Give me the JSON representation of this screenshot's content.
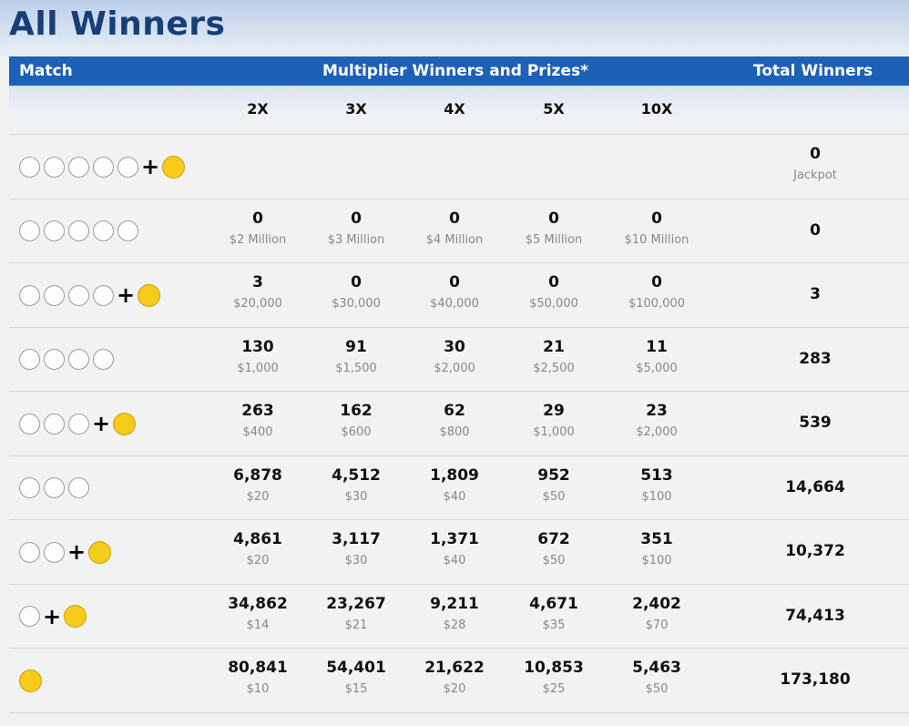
{
  "page": {
    "title": "All Winners"
  },
  "header": {
    "match": "Match",
    "multiplier": "Multiplier Winners and Prizes*",
    "total": "Total Winners"
  },
  "multipliers": [
    "2X",
    "3X",
    "4X",
    "5X",
    "10X"
  ],
  "rows": [
    {
      "white_balls": 5,
      "powerball": true,
      "cells": [],
      "total": "0",
      "total_label": "Jackpot"
    },
    {
      "white_balls": 5,
      "powerball": false,
      "cells": [
        {
          "count": "0",
          "prize": "$2 Million"
        },
        {
          "count": "0",
          "prize": "$3 Million"
        },
        {
          "count": "0",
          "prize": "$4 Million"
        },
        {
          "count": "0",
          "prize": "$5 Million"
        },
        {
          "count": "0",
          "prize": "$10 Million"
        }
      ],
      "total": "0",
      "total_label": ""
    },
    {
      "white_balls": 4,
      "powerball": true,
      "cells": [
        {
          "count": "3",
          "prize": "$20,000"
        },
        {
          "count": "0",
          "prize": "$30,000"
        },
        {
          "count": "0",
          "prize": "$40,000"
        },
        {
          "count": "0",
          "prize": "$50,000"
        },
        {
          "count": "0",
          "prize": "$100,000"
        }
      ],
      "total": "3",
      "total_label": ""
    },
    {
      "white_balls": 4,
      "powerball": false,
      "cells": [
        {
          "count": "130",
          "prize": "$1,000"
        },
        {
          "count": "91",
          "prize": "$1,500"
        },
        {
          "count": "30",
          "prize": "$2,000"
        },
        {
          "count": "21",
          "prize": "$2,500"
        },
        {
          "count": "11",
          "prize": "$5,000"
        }
      ],
      "total": "283",
      "total_label": ""
    },
    {
      "white_balls": 3,
      "powerball": true,
      "cells": [
        {
          "count": "263",
          "prize": "$400"
        },
        {
          "count": "162",
          "prize": "$600"
        },
        {
          "count": "62",
          "prize": "$800"
        },
        {
          "count": "29",
          "prize": "$1,000"
        },
        {
          "count": "23",
          "prize": "$2,000"
        }
      ],
      "total": "539",
      "total_label": ""
    },
    {
      "white_balls": 3,
      "powerball": false,
      "cells": [
        {
          "count": "6,878",
          "prize": "$20"
        },
        {
          "count": "4,512",
          "prize": "$30"
        },
        {
          "count": "1,809",
          "prize": "$40"
        },
        {
          "count": "952",
          "prize": "$50"
        },
        {
          "count": "513",
          "prize": "$100"
        }
      ],
      "total": "14,664",
      "total_label": ""
    },
    {
      "white_balls": 2,
      "powerball": true,
      "cells": [
        {
          "count": "4,861",
          "prize": "$20"
        },
        {
          "count": "3,117",
          "prize": "$30"
        },
        {
          "count": "1,371",
          "prize": "$40"
        },
        {
          "count": "672",
          "prize": "$50"
        },
        {
          "count": "351",
          "prize": "$100"
        }
      ],
      "total": "10,372",
      "total_label": ""
    },
    {
      "white_balls": 1,
      "powerball": true,
      "cells": [
        {
          "count": "34,862",
          "prize": "$14"
        },
        {
          "count": "23,267",
          "prize": "$21"
        },
        {
          "count": "9,211",
          "prize": "$28"
        },
        {
          "count": "4,671",
          "prize": "$35"
        },
        {
          "count": "2,402",
          "prize": "$70"
        }
      ],
      "total": "74,413",
      "total_label": ""
    },
    {
      "white_balls": 0,
      "powerball": true,
      "cells": [
        {
          "count": "80,841",
          "prize": "$10"
        },
        {
          "count": "54,401",
          "prize": "$15"
        },
        {
          "count": "21,622",
          "prize": "$20"
        },
        {
          "count": "10,853",
          "prize": "$25"
        },
        {
          "count": "5,463",
          "prize": "$50"
        }
      ],
      "total": "173,180",
      "total_label": ""
    }
  ],
  "colors": {
    "header_bg": "#1d60b8",
    "title": "#173f77",
    "powerball": "#f7cb1a",
    "white_ball_border": "#9b9b9b"
  }
}
